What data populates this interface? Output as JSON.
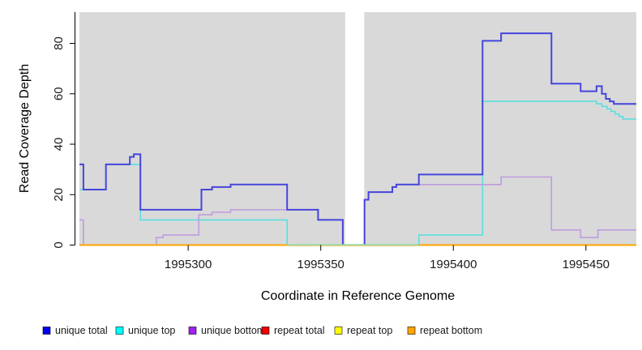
{
  "chart_data": {
    "type": "line",
    "step": true,
    "title": "",
    "xlabel": "Coordinate in Reference Genome",
    "ylabel": "Read Coverage Depth",
    "xlim": [
      1995259,
      1995469
    ],
    "ylim": [
      0,
      92
    ],
    "x_ticks": [
      1995300,
      1995350,
      1995400,
      1995450
    ],
    "y_ticks": [
      0,
      20,
      40,
      60,
      80
    ],
    "grid": false,
    "plot_bg_color": "#d9d9d9",
    "masked_gap": {
      "from": 1995359.2,
      "to": 1995366.4
    },
    "zero_overlap": {
      "from": 1995337.3,
      "to": 1995387,
      "color": "#97D7A0"
    },
    "draw_order": [
      "repeat total",
      "repeat top",
      "unique top",
      "unique bottom",
      "unique total",
      "repeat bottom"
    ],
    "series": [
      {
        "name": "unique total",
        "line_color": "#4545DC",
        "line_width": 2,
        "points": [
          [
            1995259,
            32
          ],
          [
            1995260.5,
            22
          ],
          [
            1995269,
            32
          ],
          [
            1995278,
            35
          ],
          [
            1995279.5,
            36
          ],
          [
            1995282,
            14
          ],
          [
            1995305,
            22
          ],
          [
            1995309,
            23
          ],
          [
            1995316,
            24
          ],
          [
            1995337.3,
            14
          ],
          [
            1995349,
            10
          ],
          [
            1995358.3,
            0
          ],
          [
            1995366.5,
            18
          ],
          [
            1995368,
            21
          ],
          [
            1995377,
            23
          ],
          [
            1995378.5,
            24
          ],
          [
            1995387,
            28
          ],
          [
            1995411,
            81
          ],
          [
            1995418,
            84
          ],
          [
            1995437,
            64
          ],
          [
            1995448,
            61
          ],
          [
            1995454,
            63
          ],
          [
            1995456,
            60
          ],
          [
            1995457.5,
            58
          ],
          [
            1995459,
            57
          ],
          [
            1995460.5,
            56
          ]
        ]
      },
      {
        "name": "unique top",
        "line_color": "#5CDEDE",
        "line_width": 1.6,
        "points": [
          [
            1995259,
            22
          ],
          [
            1995269,
            32
          ],
          [
            1995282,
            10
          ],
          [
            1995337.3,
            0
          ],
          [
            1995387,
            4
          ],
          [
            1995411,
            57
          ],
          [
            1995454,
            56
          ],
          [
            1995456,
            55
          ],
          [
            1995458,
            54
          ],
          [
            1995459.5,
            53
          ],
          [
            1995461,
            52
          ],
          [
            1995462.5,
            51
          ],
          [
            1995464,
            50
          ]
        ]
      },
      {
        "name": "unique bottom",
        "line_color": "#BE9DDF",
        "line_width": 1.6,
        "points": [
          [
            1995259,
            10
          ],
          [
            1995260.5,
            0
          ],
          [
            1995288,
            3
          ],
          [
            1995290.5,
            4
          ],
          [
            1995304,
            12
          ],
          [
            1995309,
            13
          ],
          [
            1995316,
            14
          ],
          [
            1995337.3,
            14
          ],
          [
            1995349,
            10
          ],
          [
            1995358.3,
            0
          ],
          [
            1995366.5,
            18
          ],
          [
            1995368,
            21
          ],
          [
            1995377,
            23
          ],
          [
            1995378.5,
            24
          ],
          [
            1995418,
            27
          ],
          [
            1995437,
            6
          ],
          [
            1995448,
            3
          ],
          [
            1995454.5,
            6
          ]
        ]
      },
      {
        "name": "repeat total",
        "line_color": "#DD0000",
        "line_width": 1.6,
        "points": [
          [
            1995259,
            0
          ]
        ]
      },
      {
        "name": "repeat top",
        "line_color": "#FFFF00",
        "line_width": 1.6,
        "points": [
          [
            1995259,
            0
          ]
        ]
      },
      {
        "name": "repeat bottom",
        "line_color": "#FFA500",
        "line_width": 2,
        "points": [
          [
            1995259,
            0
          ]
        ]
      }
    ],
    "legend": [
      {
        "label": "unique total",
        "swatch": "#0000EE"
      },
      {
        "label": "unique top",
        "swatch": "#00FFFF"
      },
      {
        "label": "unique bottom",
        "swatch": "#A020F0"
      },
      {
        "label": "repeat total",
        "swatch": "#EE0000"
      },
      {
        "label": "repeat top",
        "swatch": "#FFFF00"
      },
      {
        "label": "repeat bottom",
        "swatch": "#FFA500"
      }
    ],
    "legend_position": "bottom",
    "axis_color": "#000000",
    "tick_label_color": "#1a1a1a"
  }
}
